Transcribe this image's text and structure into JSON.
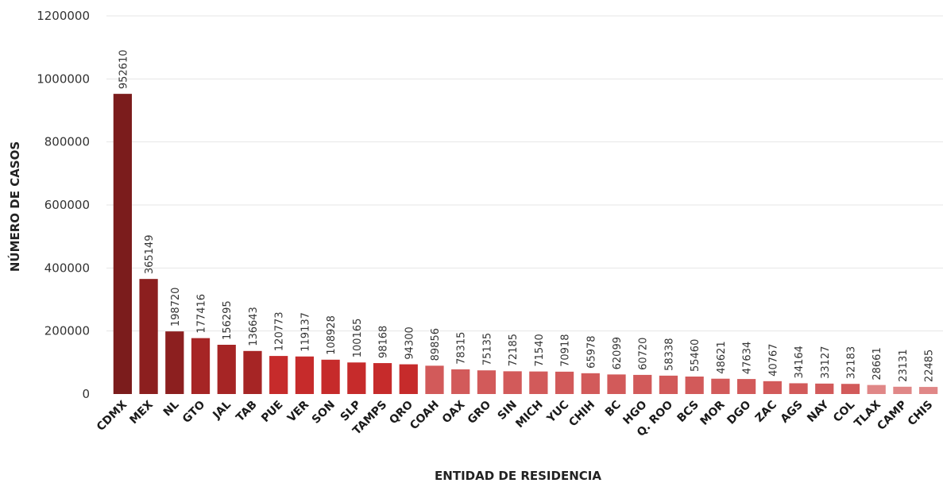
{
  "chart_data": {
    "type": "bar",
    "xlabel": "ENTIDAD DE RESIDENCIA",
    "ylabel": "NÚMERO DE CASOS",
    "ylim": [
      0,
      1200000
    ],
    "yticks": [
      0,
      200000,
      400000,
      600000,
      800000,
      1000000,
      1200000
    ],
    "ytick_labels": [
      "0",
      "200000",
      "400000",
      "600000",
      "800000",
      "1000000",
      "1200000"
    ],
    "grid": true,
    "categories": [
      "CDMX",
      "MEX",
      "NL",
      "GTO",
      "JAL",
      "TAB",
      "PUE",
      "VER",
      "SON",
      "SLP",
      "TAMPS",
      "QRO",
      "COAH",
      "OAX",
      "GRO",
      "SIN",
      "MICH",
      "YUC",
      "CHIH",
      "BC",
      "HGO",
      "Q. ROO",
      "BCS",
      "MOR",
      "DGO",
      "ZAC",
      "AGS",
      "NAY",
      "COL",
      "TLAX",
      "CAMP",
      "CHIS"
    ],
    "values": [
      952610,
      365149,
      198720,
      177416,
      156295,
      136643,
      120773,
      119137,
      108928,
      100165,
      98168,
      94300,
      89856,
      78315,
      75135,
      72185,
      71540,
      70918,
      65978,
      62099,
      60720,
      58338,
      55460,
      48621,
      47634,
      40767,
      34164,
      33127,
      32183,
      28661,
      23131,
      22485
    ],
    "value_labels": [
      "952610",
      "365149",
      "198720",
      "177416",
      "156295",
      "136643",
      "120773",
      "119137",
      "108928",
      "100165",
      "98168",
      "94300",
      "89856",
      "78315",
      "75135",
      "72185",
      "71540",
      "70918",
      "65978",
      "62099",
      "60720",
      "58338",
      "55460",
      "48621",
      "47634",
      "40767",
      "34164",
      "33127",
      "32183",
      "28661",
      "23131",
      "22485"
    ],
    "colors": [
      "#7b1c1c",
      "#8c1f1f",
      "#8c1f1f",
      "#a62525",
      "#a62525",
      "#a62525",
      "#c62b2b",
      "#c62b2b",
      "#c62b2b",
      "#c62b2b",
      "#c62b2b",
      "#c62b2b",
      "#d25a5a",
      "#d25a5a",
      "#d25a5a",
      "#d25a5a",
      "#d25a5a",
      "#d25a5a",
      "#d25a5a",
      "#d25a5a",
      "#d25a5a",
      "#d25a5a",
      "#d25a5a",
      "#d25a5a",
      "#d25a5a",
      "#d25a5a",
      "#d25a5a",
      "#d25a5a",
      "#d25a5a",
      "#e08787",
      "#e08787",
      "#e08787"
    ]
  }
}
